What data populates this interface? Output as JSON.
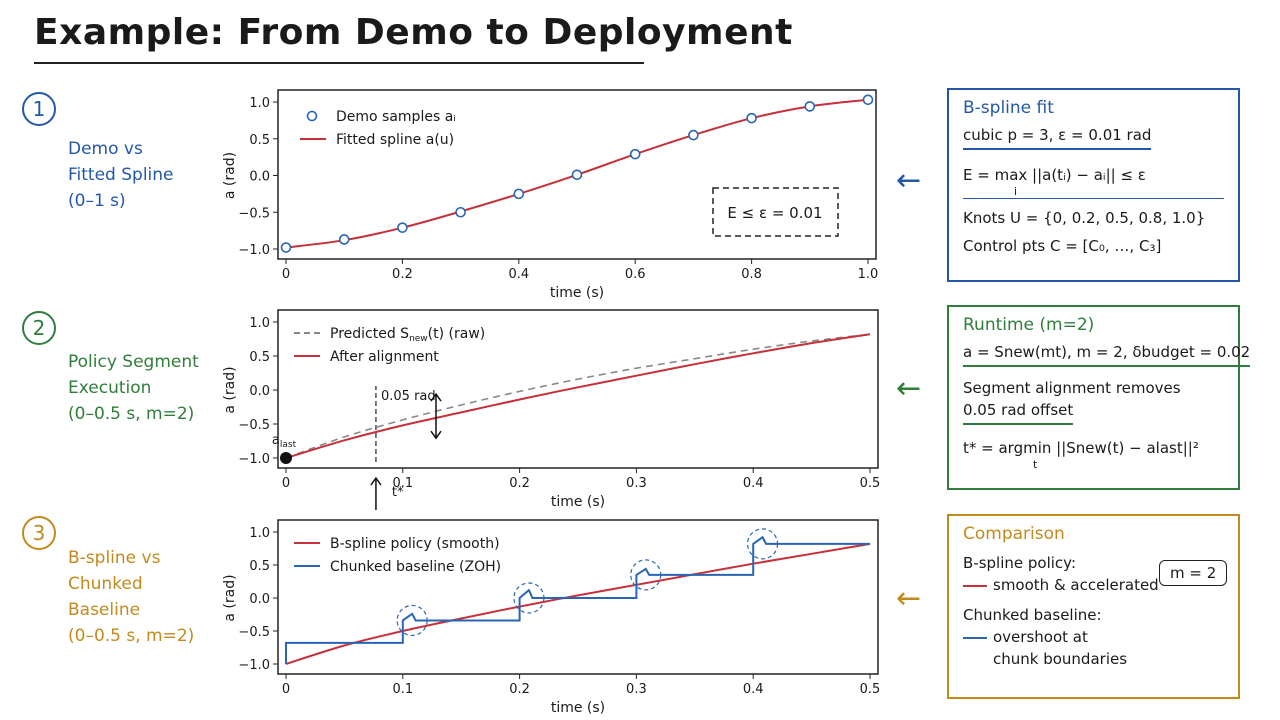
{
  "title": "Example: From Demo to Deployment",
  "steps": [
    {
      "num": "1",
      "lines": [
        "Demo vs",
        "Fitted Spline",
        "(0–1 s)"
      ]
    },
    {
      "num": "2",
      "lines": [
        "Policy Segment",
        "Execution",
        "(0–0.5 s, m=2)"
      ]
    },
    {
      "num": "3",
      "lines": [
        "B-spline vs",
        "Chunked",
        "Baseline",
        "(0–0.5 s, m=2)"
      ]
    }
  ],
  "colors": {
    "blue": "#2358a8",
    "green": "#2f7d3a",
    "gold": "#c28a1c",
    "red": "#c6303a",
    "series_blue": "#2a64b4",
    "gray": "#888888"
  },
  "arrow_glyph": "←",
  "chart_data": [
    {
      "type": "scatter",
      "title": "",
      "xlabel": "time (s)",
      "ylabel": "a (rad)",
      "xlim": [
        0,
        1.0
      ],
      "ylim": [
        -1.0,
        1.0
      ],
      "xticks": [
        "0",
        "0.2",
        "0.4",
        "0.6",
        "0.8",
        "1.0"
      ],
      "yticks": [
        "1.0",
        "0.5",
        "0.0",
        "−0.5",
        "−1.0"
      ],
      "legend_position": "top-left",
      "series": [
        {
          "name": "Demo samples aᵢ",
          "kind": "markers",
          "x": [
            0,
            0.1,
            0.2,
            0.3,
            0.4,
            0.5,
            0.6,
            0.7,
            0.8,
            0.9,
            1.0
          ],
          "y": [
            -0.98,
            -0.87,
            -0.71,
            -0.5,
            -0.25,
            0.01,
            0.29,
            0.55,
            0.78,
            0.94,
            1.03
          ]
        },
        {
          "name": "Fitted spline a(u)",
          "kind": "line",
          "x": [
            0,
            0.1,
            0.2,
            0.3,
            0.4,
            0.5,
            0.6,
            0.7,
            0.8,
            0.9,
            1.0
          ],
          "y": [
            -0.98,
            -0.88,
            -0.71,
            -0.49,
            -0.25,
            0.01,
            0.29,
            0.55,
            0.78,
            0.94,
            1.03
          ]
        }
      ],
      "annotation": "E ≤ ε = 0.01"
    },
    {
      "type": "line",
      "title": "",
      "xlabel": "time (s)",
      "ylabel": "a (rad)",
      "xlim": [
        0,
        0.5
      ],
      "ylim": [
        -1.0,
        1.0
      ],
      "xticks": [
        "0",
        "0.1",
        "0.2",
        "0.3",
        "0.4",
        "0.5"
      ],
      "yticks": [
        "1.0",
        "0.5",
        "0.0",
        "−0.5",
        "−1.0"
      ],
      "legend_position": "top-left",
      "series": [
        {
          "name_html": "Predicted S<tspan font-size='9' dy='3'>new</tspan><tspan dy='-3'>(t) (raw)</tspan>",
          "name": "Predicted Snew(t) (raw)",
          "kind": "dashed",
          "x": [
            0,
            0.05,
            0.1,
            0.15,
            0.2,
            0.25,
            0.3,
            0.35,
            0.4,
            0.45,
            0.5
          ],
          "y": [
            -1.0,
            -0.69,
            -0.44,
            -0.22,
            -0.02,
            0.16,
            0.32,
            0.46,
            0.6,
            0.72,
            0.82
          ]
        },
        {
          "name": "After alignment",
          "kind": "line",
          "x": [
            0,
            0.05,
            0.1,
            0.15,
            0.2,
            0.25,
            0.3,
            0.35,
            0.4,
            0.45,
            0.5
          ],
          "y": [
            -1.0,
            -0.74,
            -0.52,
            -0.33,
            -0.14,
            0.04,
            0.21,
            0.38,
            0.54,
            0.69,
            0.82
          ]
        }
      ],
      "point_label": "a_last",
      "offset_label": "0.05 rad",
      "tstar_label": "t*",
      "tstar_x": 0.077
    },
    {
      "type": "line",
      "title": "",
      "xlabel": "time (s)",
      "ylabel": "a (rad)",
      "xlim": [
        0,
        0.5
      ],
      "ylim": [
        -1.0,
        1.0
      ],
      "xticks": [
        "0",
        "0.1",
        "0.2",
        "0.3",
        "0.4",
        "0.5"
      ],
      "yticks": [
        "1.0",
        "0.5",
        "0.0",
        "−0.5",
        "−1.0"
      ],
      "legend_position": "top-left",
      "series": [
        {
          "name": "B-spline policy (smooth)",
          "kind": "line",
          "x": [
            0,
            0.05,
            0.1,
            0.15,
            0.2,
            0.25,
            0.3,
            0.35,
            0.4,
            0.45,
            0.5
          ],
          "y": [
            -1.0,
            -0.72,
            -0.5,
            -0.31,
            -0.13,
            0.04,
            0.2,
            0.36,
            0.52,
            0.67,
            0.82
          ]
        },
        {
          "name": "Chunked baseline (ZOH)",
          "kind": "step",
          "x": [
            0,
            0.1,
            0.1,
            0.11,
            0.2,
            0.2,
            0.21,
            0.3,
            0.3,
            0.31,
            0.4,
            0.4,
            0.41,
            0.5
          ],
          "y": [
            -0.68,
            -0.68,
            -0.34,
            -0.34,
            -0.34,
            0.0,
            0.0,
            0.0,
            0.35,
            0.35,
            0.35,
            0.82,
            0.82,
            0.82
          ],
          "spikes": [
            [
              0.108,
              -0.24
            ],
            [
              0.208,
              0.12
            ],
            [
              0.308,
              0.44
            ],
            [
              0.408,
              0.92
            ]
          ]
        }
      ],
      "highlight_circles_x": [
        0.108,
        0.208,
        0.308,
        0.408
      ],
      "highlight_circles_y": [
        -0.34,
        0.0,
        0.35,
        0.82
      ]
    }
  ],
  "boxes": {
    "bspline": {
      "head": "B-spline fit",
      "l1": "cubic p = 3, ε = 0.01 rad",
      "l2": "E = max ||a(tᵢ) − aᵢ|| ≤ ε",
      "l2_sub": "i",
      "l3": "Knots U = {0, 0.2, 0.5, 0.8, 1.0}",
      "l4": "Control pts C = [C₀, …, C₃]"
    },
    "runtime": {
      "head": "Runtime (m=2)",
      "l1": "a = Snew(mt), m = 2, δbudget = 0.02",
      "l2": "Segment alignment removes",
      "l3": "0.05 rad offset",
      "l4": "t* = argmin ||Snew(t) − alast||²",
      "l4_sub": "t"
    },
    "comparison": {
      "head": "Comparison",
      "l1": "B-spline policy:",
      "l2": "smooth & accelerated",
      "l3": "Chunked baseline:",
      "l4": "overshoot at",
      "l5": "chunk boundaries",
      "m_label": "m = 2"
    }
  }
}
